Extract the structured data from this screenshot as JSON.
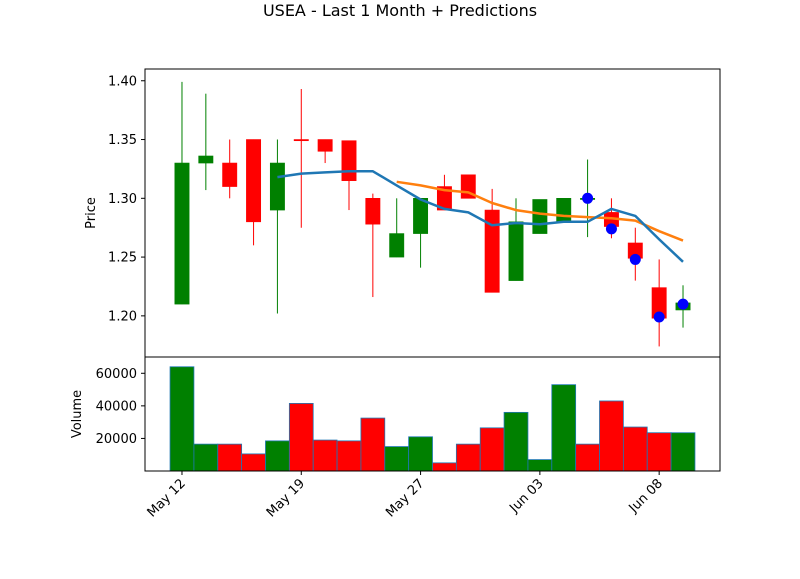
{
  "chart_data": {
    "type": "candlestick",
    "title": "USEA - Last 1 Month + Predictions",
    "colors": {
      "up": "#008000",
      "down": "#ff0000",
      "volume_edge": "#1f77b4",
      "line_blue": "#1f77b4",
      "line_orange": "#ff7f0e",
      "marker": "#0000ff"
    },
    "price_panel": {
      "ylabel": "Price",
      "ylim": [
        1.165,
        1.41
      ],
      "yticks": [
        "1.20",
        "1.25",
        "1.30",
        "1.35",
        "1.40"
      ],
      "ytick_values": [
        1.2,
        1.25,
        1.3,
        1.35,
        1.4
      ],
      "candles": [
        {
          "i": 0,
          "open": 1.21,
          "close": 1.33,
          "high": 1.399,
          "low": 1.21
        },
        {
          "i": 1,
          "open": 1.33,
          "close": 1.336,
          "high": 1.389,
          "low": 1.307
        },
        {
          "i": 2,
          "open": 1.33,
          "close": 1.31,
          "high": 1.35,
          "low": 1.3
        },
        {
          "i": 3,
          "open": 1.35,
          "close": 1.28,
          "high": 1.35,
          "low": 1.26
        },
        {
          "i": 4,
          "open": 1.29,
          "close": 1.33,
          "high": 1.35,
          "low": 1.202
        },
        {
          "i": 5,
          "open": 1.35,
          "close": 1.349,
          "high": 1.393,
          "low": 1.275
        },
        {
          "i": 6,
          "open": 1.35,
          "close": 1.34,
          "high": 1.35,
          "low": 1.33
        },
        {
          "i": 7,
          "open": 1.349,
          "close": 1.315,
          "high": 1.349,
          "low": 1.29
        },
        {
          "i": 8,
          "open": 1.3,
          "close": 1.278,
          "high": 1.304,
          "low": 1.216
        },
        {
          "i": 9,
          "open": 1.25,
          "close": 1.27,
          "high": 1.3,
          "low": 1.25
        },
        {
          "i": 10,
          "open": 1.27,
          "close": 1.3,
          "high": 1.3,
          "low": 1.241
        },
        {
          "i": 11,
          "open": 1.31,
          "close": 1.29,
          "high": 1.32,
          "low": 1.29
        },
        {
          "i": 12,
          "open": 1.32,
          "close": 1.3,
          "high": 1.32,
          "low": 1.3
        },
        {
          "i": 13,
          "open": 1.29,
          "close": 1.22,
          "high": 1.308,
          "low": 1.22
        },
        {
          "i": 14,
          "open": 1.23,
          "close": 1.28,
          "high": 1.3,
          "low": 1.23
        },
        {
          "i": 15,
          "open": 1.27,
          "close": 1.299,
          "high": 1.299,
          "low": 1.27
        },
        {
          "i": 16,
          "open": 1.28,
          "close": 1.3,
          "high": 1.3,
          "low": 1.28
        },
        {
          "i": 17,
          "open": 1.3,
          "close": 1.3,
          "high": 1.333,
          "low": 1.267
        },
        {
          "i": 18,
          "open": 1.288,
          "close": 1.276,
          "high": 1.3,
          "low": 1.266
        },
        {
          "i": 19,
          "open": 1.262,
          "close": 1.249,
          "high": 1.275,
          "low": 1.23
        },
        {
          "i": 20,
          "open": 1.224,
          "close": 1.198,
          "high": 1.248,
          "low": 1.174
        },
        {
          "i": 21,
          "open": 1.205,
          "close": 1.211,
          "high": 1.226,
          "low": 1.19
        }
      ],
      "blue_line": [
        {
          "i": 4,
          "y": 1.318
        },
        {
          "i": 5,
          "y": 1.321
        },
        {
          "i": 6,
          "y": 1.322
        },
        {
          "i": 7,
          "y": 1.323
        },
        {
          "i": 8,
          "y": 1.323
        },
        {
          "i": 9,
          "y": 1.311
        },
        {
          "i": 10,
          "y": 1.299
        },
        {
          "i": 11,
          "y": 1.291
        },
        {
          "i": 12,
          "y": 1.288
        },
        {
          "i": 13,
          "y": 1.277
        },
        {
          "i": 14,
          "y": 1.279
        },
        {
          "i": 15,
          "y": 1.278
        },
        {
          "i": 16,
          "y": 1.28
        },
        {
          "i": 17,
          "y": 1.28
        },
        {
          "i": 18,
          "y": 1.291
        },
        {
          "i": 19,
          "y": 1.285
        },
        {
          "i": 20,
          "y": 1.265
        },
        {
          "i": 21,
          "y": 1.246
        }
      ],
      "orange_line": [
        {
          "i": 9,
          "y": 1.314
        },
        {
          "i": 10,
          "y": 1.311
        },
        {
          "i": 11,
          "y": 1.307
        },
        {
          "i": 12,
          "y": 1.305
        },
        {
          "i": 13,
          "y": 1.296
        },
        {
          "i": 14,
          "y": 1.29
        },
        {
          "i": 15,
          "y": 1.287
        },
        {
          "i": 16,
          "y": 1.285
        },
        {
          "i": 17,
          "y": 1.284
        },
        {
          "i": 18,
          "y": 1.283
        },
        {
          "i": 19,
          "y": 1.281
        },
        {
          "i": 20,
          "y": 1.272
        },
        {
          "i": 21,
          "y": 1.264
        }
      ],
      "markers": [
        {
          "i": 17,
          "y": 1.3
        },
        {
          "i": 18,
          "y": 1.274
        },
        {
          "i": 19,
          "y": 1.248
        },
        {
          "i": 20,
          "y": 1.199
        },
        {
          "i": 21,
          "y": 1.21
        }
      ]
    },
    "volume_panel": {
      "ylabel": "Volume",
      "ylim": [
        0,
        70000
      ],
      "yticks": [
        "20000",
        "40000",
        "60000"
      ],
      "ytick_values": [
        20000,
        40000,
        60000
      ],
      "bars": [
        {
          "i": 0,
          "v": 64000,
          "up": true
        },
        {
          "i": 1,
          "v": 16500,
          "up": true
        },
        {
          "i": 2,
          "v": 16500,
          "up": false
        },
        {
          "i": 3,
          "v": 10500,
          "up": false
        },
        {
          "i": 4,
          "v": 18500,
          "up": true
        },
        {
          "i": 5,
          "v": 41500,
          "up": false
        },
        {
          "i": 6,
          "v": 19000,
          "up": false
        },
        {
          "i": 7,
          "v": 18500,
          "up": false
        },
        {
          "i": 8,
          "v": 32500,
          "up": false
        },
        {
          "i": 9,
          "v": 15000,
          "up": true
        },
        {
          "i": 10,
          "v": 21000,
          "up": true
        },
        {
          "i": 11,
          "v": 5000,
          "up": false
        },
        {
          "i": 12,
          "v": 16500,
          "up": false
        },
        {
          "i": 13,
          "v": 26500,
          "up": false
        },
        {
          "i": 14,
          "v": 36000,
          "up": true
        },
        {
          "i": 15,
          "v": 7000,
          "up": true
        },
        {
          "i": 16,
          "v": 53000,
          "up": true
        },
        {
          "i": 17,
          "v": 16500,
          "up": false
        },
        {
          "i": 18,
          "v": 43000,
          "up": false
        },
        {
          "i": 19,
          "v": 27000,
          "up": false
        },
        {
          "i": 20,
          "v": 23500,
          "up": false
        },
        {
          "i": 21,
          "v": 23500,
          "up": true
        }
      ]
    },
    "xaxis": {
      "ticks": [
        {
          "i": 0,
          "label": "May 12"
        },
        {
          "i": 5,
          "label": "May 19"
        },
        {
          "i": 10,
          "label": "May 27"
        },
        {
          "i": 15,
          "label": "Jun 03"
        },
        {
          "i": 20,
          "label": "Jun 08"
        }
      ],
      "range": [
        -1.55,
        22.55
      ]
    },
    "grid": false,
    "legend": "none"
  }
}
